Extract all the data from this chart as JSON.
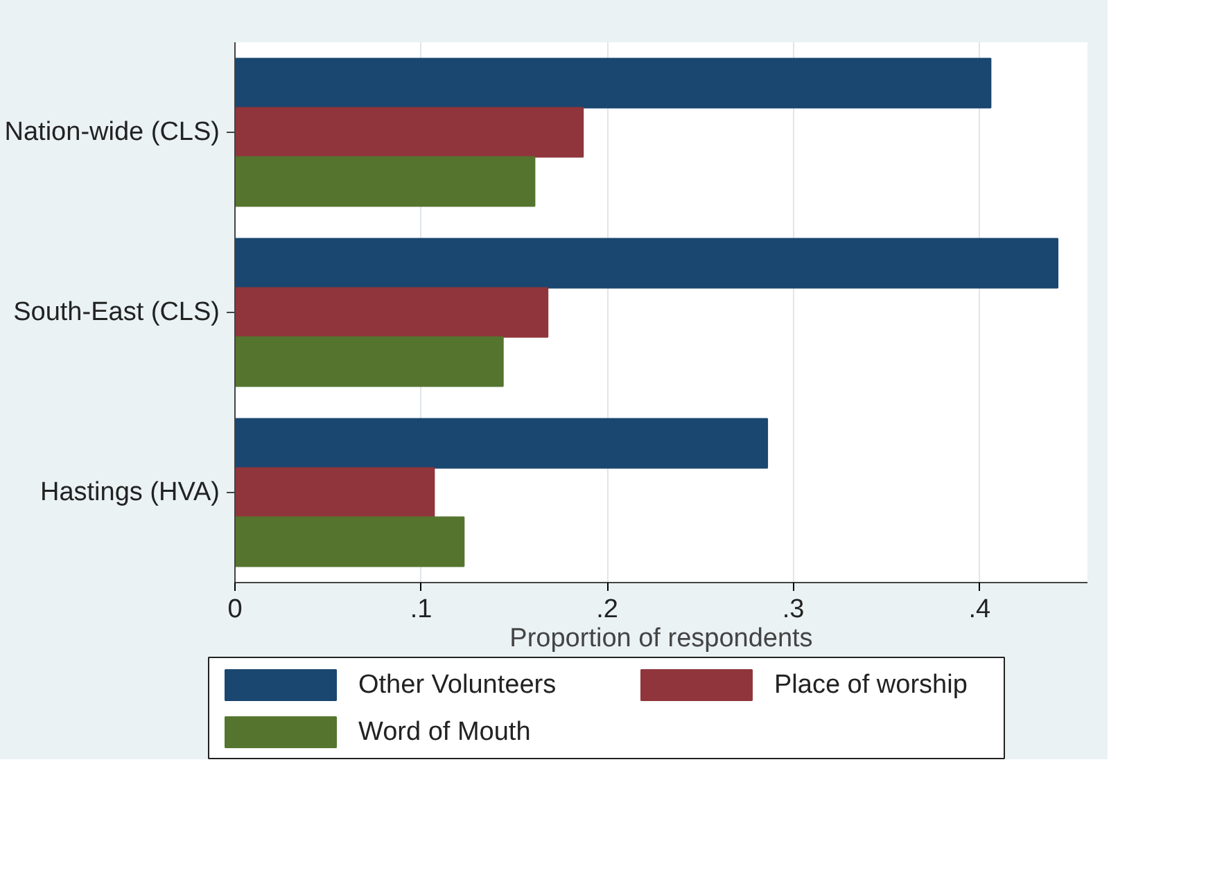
{
  "chart_data": {
    "type": "bar",
    "orientation": "horizontal",
    "xlabel": "Proportion of respondents",
    "categories": [
      "Nation-wide (CLS)",
      "South-East (CLS)",
      "Hastings (HVA)"
    ],
    "series": [
      {
        "name": "Other Volunteers",
        "color": "#1a476f",
        "values": [
          0.406,
          0.442,
          0.286
        ]
      },
      {
        "name": "Place of worship",
        "color": "#90353b",
        "values": [
          0.187,
          0.168,
          0.107
        ]
      },
      {
        "name": "Word of Mouth",
        "color": "#55752f",
        "values": [
          0.161,
          0.144,
          0.123
        ]
      }
    ],
    "xlim": [
      0,
      0.458
    ],
    "xticks": [
      0,
      {
        "value": 0.1,
        "label": ".1"
      },
      {
        "value": 0.2,
        "label": ".2"
      },
      {
        "value": 0.3,
        "label": ".3"
      },
      {
        "value": 0.4,
        "label": ".4"
      }
    ],
    "grid": "x",
    "legend": "bottom"
  }
}
